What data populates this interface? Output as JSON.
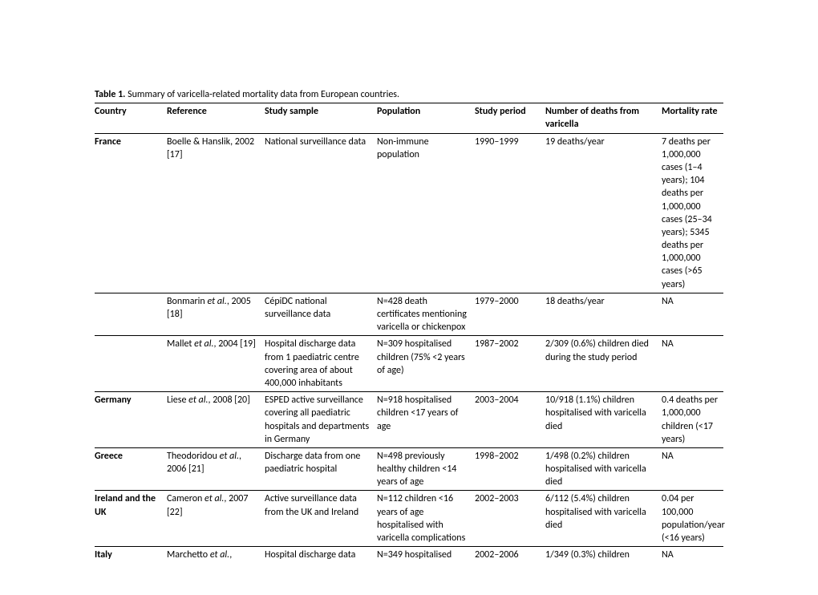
{
  "caption_bold": "Table 1.",
  "caption_rest": " Summary of varicella-related mortality data from European countries.",
  "headers": {
    "c1": "Country",
    "c2": "Reference",
    "c3": "Study sample",
    "c4": "Population",
    "c5": "Study period",
    "c6": "Number of deaths from varicella",
    "c7": "Mortality rate"
  },
  "rows": [
    {
      "country": "France",
      "ref_plain": "Boelle & Hanslik, 2002 [17]",
      "sample": "National surveillance data",
      "population": "Non-immune population",
      "period": "1990–1999",
      "deaths": "19 deaths/year",
      "rate": "7 deaths per 1,000,000 cases (1–4 years); 104 deaths per 1,000,000 cases (25–34 years); 5345 deaths per 1,000,000 cases (>65 years)",
      "sep": true
    },
    {
      "country": "",
      "ref_pre": "Bonmarin ",
      "ref_em": "et al.",
      "ref_post": ", 2005 [18]",
      "sample": "CépiDC national surveillance data",
      "population": "N=428 death certificates mentioning varicella or chickenpox",
      "period": "1979–2000",
      "deaths": "18 deaths/year",
      "rate": "NA",
      "sep": true
    },
    {
      "country": "",
      "ref_pre": "Mallet ",
      "ref_em": "et al.",
      "ref_post": ", 2004 [19]",
      "sample": "Hospital discharge data from 1 paediatric centre covering area of about 400,000 inhabitants",
      "population": "N=309 hospitalised children (75% <2 years of age)",
      "period": "1987–2002",
      "deaths": "2/309 (0.6%) children died during the study period",
      "rate": "NA",
      "sep": true
    },
    {
      "country": "Germany",
      "ref_pre": "Liese ",
      "ref_em": "et al.",
      "ref_post": ", 2008 [20]",
      "sample": "ESPED active surveillance covering all paediatric hospitals and departments in Germany",
      "population": "N=918 hospitalised children <17 years of age",
      "period": "2003–2004",
      "deaths": "10/918 (1.1%) children hospitalised with varicella died",
      "rate": "0.4 deaths per 1,000,000 children (<17 years)",
      "sep": true
    },
    {
      "country": "Greece",
      "ref_pre": "Theodoridou ",
      "ref_em": "et al.",
      "ref_post": ", 2006 [21]",
      "sample": "Discharge data from one paediatric hospital",
      "population": "N=498 previously healthy children <14 years of age",
      "period": "1998–2002",
      "deaths": "1/498 (0.2%) children hospitalised with varicella died",
      "rate": "NA",
      "sep": true
    },
    {
      "country": "Ireland and the UK",
      "ref_pre": "Cameron ",
      "ref_em": "et al.",
      "ref_post": ", 2007 [22]",
      "sample": "Active surveillance data from the UK and Ireland",
      "population": "N=112 children <16 years of age hospitalised with varicella complications",
      "period": "2002–2003",
      "deaths": "6/112 (5.4%) children hospitalised with varicella died",
      "rate": "0.04 per 100,000 population/year (<16 years)",
      "sep": true
    },
    {
      "country": "Italy",
      "ref_pre": "Marchetto ",
      "ref_em": "et al.",
      "ref_post": ", ",
      "sample": "Hospital discharge data",
      "population": "N=349 hospitalised",
      "period": "2002–2006",
      "deaths": "1/349 (0.3%) children",
      "rate": "NA",
      "sep": false
    }
  ]
}
